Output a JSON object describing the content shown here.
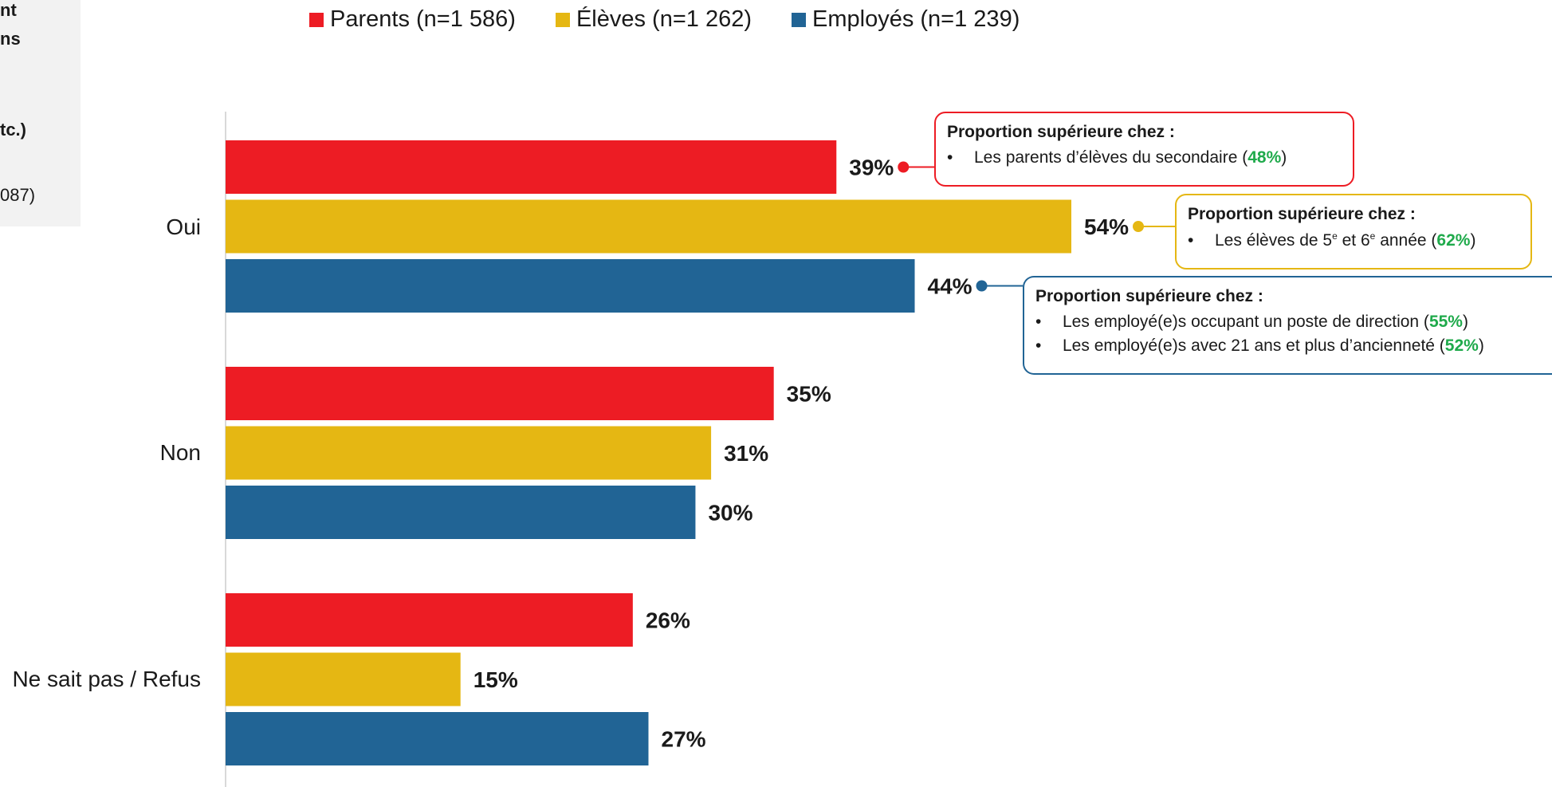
{
  "left_panel": {
    "lines": [
      "nt",
      "ns",
      "tc.)",
      "087)"
    ]
  },
  "legend": [
    {
      "label": "Parents (n=1 586)",
      "color": "#ed1c24"
    },
    {
      "label": "Élèves (n=1 262)",
      "color": "#e5b713"
    },
    {
      "label": "Employés (n=1 239)",
      "color": "#216495"
    }
  ],
  "chart_data": {
    "type": "bar",
    "orientation": "horizontal",
    "categories": [
      "Oui",
      "Non",
      "Ne sait pas / Refus"
    ],
    "series": [
      {
        "name": "Parents (n=1 586)",
        "color": "#ed1c24",
        "values": [
          39,
          35,
          26
        ],
        "labels": [
          "39%",
          "35%",
          "26%"
        ]
      },
      {
        "name": "Élèves (n=1 262)",
        "color": "#e5b713",
        "values": [
          54,
          31,
          15
        ],
        "labels": [
          "54%",
          "31%",
          "15%"
        ]
      },
      {
        "name": "Employés (n=1 239)",
        "color": "#216495",
        "values": [
          44,
          30,
          27
        ],
        "labels": [
          "44%",
          "30%",
          "27%"
        ]
      }
    ],
    "xlim": [
      0,
      70
    ],
    "legend_position": "top",
    "grid": false
  },
  "callouts": [
    {
      "title": "Proportion supérieure chez :",
      "color": "#ed1c24",
      "items": [
        {
          "pre": "Les parents d’élèves du secondaire (",
          "pct": "48%",
          "post": ")"
        }
      ]
    },
    {
      "title": "Proportion supérieure chez :",
      "color": "#e5b713",
      "items": [
        {
          "pre": "Les élèves de 5",
          "sup1": "e",
          "mid": " et 6",
          "sup2": "e",
          "mid2": " année (",
          "pct": "62%",
          "post": ")"
        }
      ]
    },
    {
      "title": "Proportion supérieure chez :",
      "color": "#216495",
      "items": [
        {
          "pre": "Les employé(e)s occupant un poste de direction (",
          "pct": "55%",
          "post": ")"
        },
        {
          "pre": "Les employé(e)s avec 21 ans et plus d’ancienneté (",
          "pct": "52%",
          "post": ")"
        }
      ]
    }
  ],
  "bullet": "•"
}
